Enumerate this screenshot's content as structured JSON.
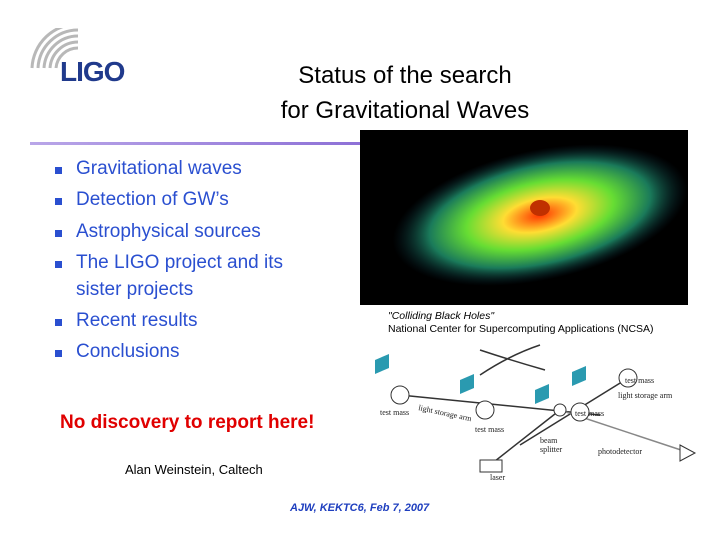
{
  "logo": {
    "text": "LIGO"
  },
  "title": {
    "lines": [
      "Status of the search",
      "for Gravitational Waves"
    ]
  },
  "bullets": [
    "Gravitational waves",
    "Detection of GW’s",
    "Astrophysical sources",
    "The LIGO project and its",
    "sister projects",
    "Recent results",
    "Conclusions"
  ],
  "highlight": "No discovery to report here!",
  "author": "Alan Weinstein, Caltech",
  "image": {
    "caption": [
      "\"Colliding Black Holes\"",
      "National Center for Supercomputing Applications (NCSA)"
    ]
  },
  "diagram": {
    "labels": [
      "test mass",
      "light storage arm",
      "test mass",
      "light storage arm",
      "test mass",
      "test mass",
      "beam",
      "splitter",
      "photodetector",
      "laser"
    ]
  },
  "footer": "AJW, KEKTC6,  Feb 7, 2007"
}
